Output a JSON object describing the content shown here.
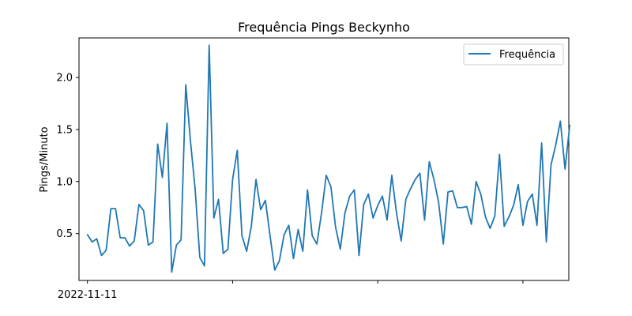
{
  "chart_data": {
    "type": "line",
    "title": "Frequência Pings Beckynho",
    "xlabel": "",
    "ylabel": "Pings/Minuto",
    "x_tick_labels": [
      "2022-11-11",
      "",
      "",
      ""
    ],
    "y_ticks": [
      0.5,
      1.0,
      1.5,
      2.0
    ],
    "y_tick_labels": [
      "0.5",
      "1.0",
      "1.5",
      "2.0"
    ],
    "ylim": [
      0.05,
      2.38
    ],
    "xlim": [
      -1.8,
      102.8
    ],
    "x_tick_positions": [
      0,
      31,
      62,
      93
    ],
    "grid": false,
    "legend": {
      "position": "top-right"
    },
    "colors": {
      "series": "#1f77b4"
    },
    "series": [
      {
        "name": "Frequência",
        "values": [
          0.49,
          0.42,
          0.45,
          0.29,
          0.34,
          0.74,
          0.74,
          0.46,
          0.46,
          0.38,
          0.43,
          0.78,
          0.72,
          0.39,
          0.42,
          1.36,
          1.04,
          1.56,
          0.13,
          0.39,
          0.44,
          1.93,
          1.39,
          0.93,
          0.27,
          0.19,
          2.31,
          0.65,
          0.83,
          0.31,
          0.35,
          1.02,
          1.3,
          0.48,
          0.33,
          0.57,
          1.02,
          0.73,
          0.82,
          0.48,
          0.15,
          0.24,
          0.49,
          0.58,
          0.26,
          0.54,
          0.33,
          0.92,
          0.48,
          0.4,
          0.7,
          1.06,
          0.95,
          0.56,
          0.35,
          0.7,
          0.86,
          0.92,
          0.29,
          0.78,
          0.88,
          0.65,
          0.77,
          0.86,
          0.63,
          1.06,
          0.7,
          0.43,
          0.83,
          0.93,
          1.02,
          1.08,
          0.63,
          1.19,
          1.02,
          0.8,
          0.4,
          0.9,
          0.91,
          0.75,
          0.75,
          0.76,
          0.59,
          1.0,
          0.88,
          0.66,
          0.55,
          0.67,
          1.26,
          0.57,
          0.66,
          0.77,
          0.97,
          0.58,
          0.81,
          0.88,
          0.58,
          1.37,
          0.42,
          1.16,
          1.35,
          1.58,
          1.12,
          1.54
        ]
      }
    ]
  }
}
